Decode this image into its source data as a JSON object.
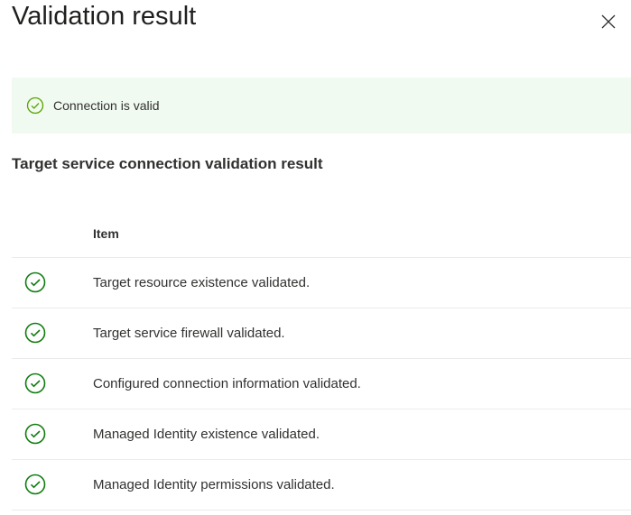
{
  "title": "Validation result",
  "banner": {
    "text": "Connection is valid",
    "icon": "check-circle-icon",
    "color": "#107c10"
  },
  "section_title": "Target service connection validation result",
  "table": {
    "header": "Item",
    "rows": [
      "Target resource existence validated.",
      "Target service firewall validated.",
      "Configured connection information validated.",
      "Managed Identity existence validated.",
      "Managed Identity permissions validated."
    ]
  }
}
